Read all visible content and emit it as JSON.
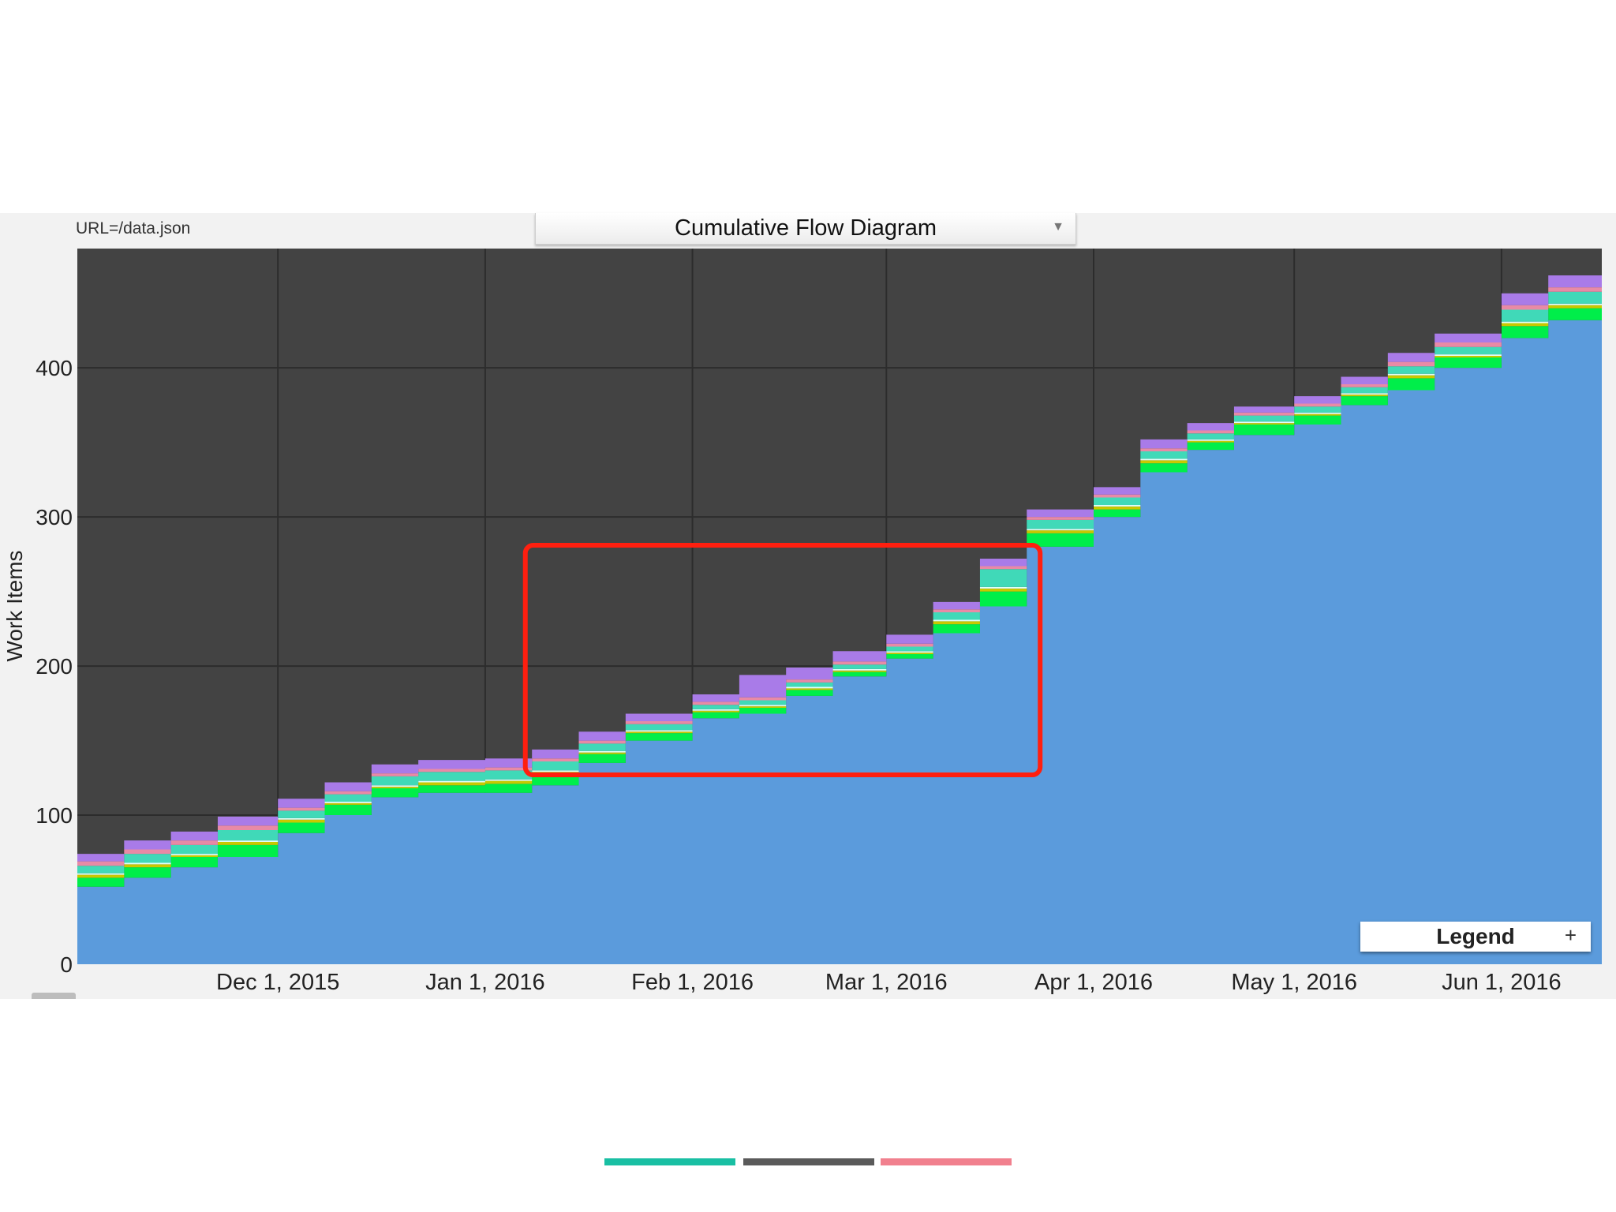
{
  "header": {
    "url_label": "URL=/data.json",
    "view_selector": {
      "selected": "Cumulative Flow Diagram"
    }
  },
  "legend_button": {
    "label": "Legend",
    "expand_symbol": "+"
  },
  "colors": {
    "plot_background": "#434343",
    "gridline": "#2c2c2c",
    "highlight_box": "#ff1f0f",
    "slide_bar_1": "#19bfa3",
    "slide_bar_2": "#5a5a5a",
    "slide_bar_3": "#f1808e"
  },
  "chart_data": {
    "type": "area",
    "stacked": true,
    "title": "Cumulative Flow Diagram",
    "ylabel": "Work Items",
    "xlabel": "",
    "x_range": [
      "2015-11-01",
      "2016-06-16"
    ],
    "ylim": [
      0,
      480
    ],
    "yticks": [
      0,
      100,
      200,
      300,
      400
    ],
    "xticks": [
      "Dec 1, 2015",
      "Jan 1, 2016",
      "Feb 1, 2016",
      "Mar 1, 2016",
      "Apr 1, 2016",
      "May 1, 2016",
      "Jun 1, 2016"
    ],
    "xtick_dates": [
      "2015-12-01",
      "2016-01-01",
      "2016-02-01",
      "2016-03-01",
      "2016-04-01",
      "2016-05-01",
      "2016-06-01"
    ],
    "grid": true,
    "legend_position": "bottom-right",
    "x": [
      "2015-11-01",
      "2015-11-08",
      "2015-11-15",
      "2015-11-22",
      "2015-12-01",
      "2015-12-08",
      "2015-12-15",
      "2015-12-22",
      "2016-01-01",
      "2016-01-08",
      "2016-01-15",
      "2016-01-22",
      "2016-02-01",
      "2016-02-08",
      "2016-02-15",
      "2016-02-22",
      "2016-03-01",
      "2016-03-08",
      "2016-03-15",
      "2016-03-22",
      "2016-04-01",
      "2016-04-08",
      "2016-04-15",
      "2016-04-22",
      "2016-05-01",
      "2016-05-08",
      "2016-05-15",
      "2016-05-22",
      "2016-06-01",
      "2016-06-08",
      "2016-06-16"
    ],
    "series": [
      {
        "color": "#5b9bdc",
        "values": [
          52,
          58,
          65,
          72,
          88,
          100,
          112,
          115,
          115,
          120,
          135,
          150,
          165,
          168,
          180,
          193,
          205,
          222,
          240,
          280,
          300,
          330,
          345,
          355,
          362,
          375,
          385,
          400,
          420,
          432,
          445
        ]
      },
      {
        "color": "#00ee4a",
        "values": [
          6,
          7,
          7,
          8,
          7,
          7,
          6,
          5,
          6,
          7,
          6,
          5,
          4,
          4,
          4,
          3,
          3,
          6,
          10,
          9,
          5,
          6,
          5,
          7,
          6,
          6,
          8,
          7,
          8,
          8,
          8
        ]
      },
      {
        "color": "#c8c800",
        "values": [
          2,
          2,
          1,
          2,
          2,
          1,
          1,
          2,
          2,
          2,
          1,
          1,
          1,
          1,
          1,
          1,
          1,
          2,
          2,
          2,
          2,
          2,
          1,
          1,
          1,
          1,
          2,
          1,
          2,
          2,
          2
        ]
      },
      {
        "color": "#e0fff7",
        "values": [
          1,
          1,
          1,
          1,
          1,
          1,
          1,
          1,
          1,
          1,
          1,
          1,
          1,
          1,
          1,
          1,
          1,
          1,
          1,
          1,
          1,
          1,
          1,
          1,
          1,
          1,
          1,
          1,
          1,
          1,
          1
        ]
      },
      {
        "color": "#40d9b8",
        "values": [
          5,
          6,
          6,
          7,
          5,
          5,
          6,
          6,
          6,
          6,
          5,
          4,
          3,
          3,
          3,
          3,
          3,
          5,
          12,
          6,
          5,
          5,
          4,
          4,
          4,
          4,
          5,
          5,
          8,
          8,
          8
        ]
      },
      {
        "color": "#e88aa6",
        "values": [
          3,
          3,
          3,
          3,
          2,
          2,
          2,
          2,
          2,
          2,
          2,
          2,
          2,
          2,
          2,
          2,
          2,
          2,
          2,
          2,
          2,
          2,
          2,
          2,
          2,
          2,
          3,
          3,
          3,
          3,
          3
        ]
      },
      {
        "color": "#a97be8",
        "values": [
          5,
          6,
          6,
          6,
          6,
          6,
          6,
          6,
          6,
          6,
          6,
          5,
          5,
          15,
          8,
          7,
          6,
          5,
          5,
          5,
          5,
          6,
          5,
          4,
          5,
          5,
          6,
          6,
          8,
          8,
          8
        ]
      }
    ],
    "annotations": [
      {
        "type": "rectangle",
        "x_from": "2016-01-07",
        "x_to": "2016-03-24",
        "y_from": 127,
        "y_to": 281,
        "color": "#ff1f0f"
      }
    ]
  }
}
